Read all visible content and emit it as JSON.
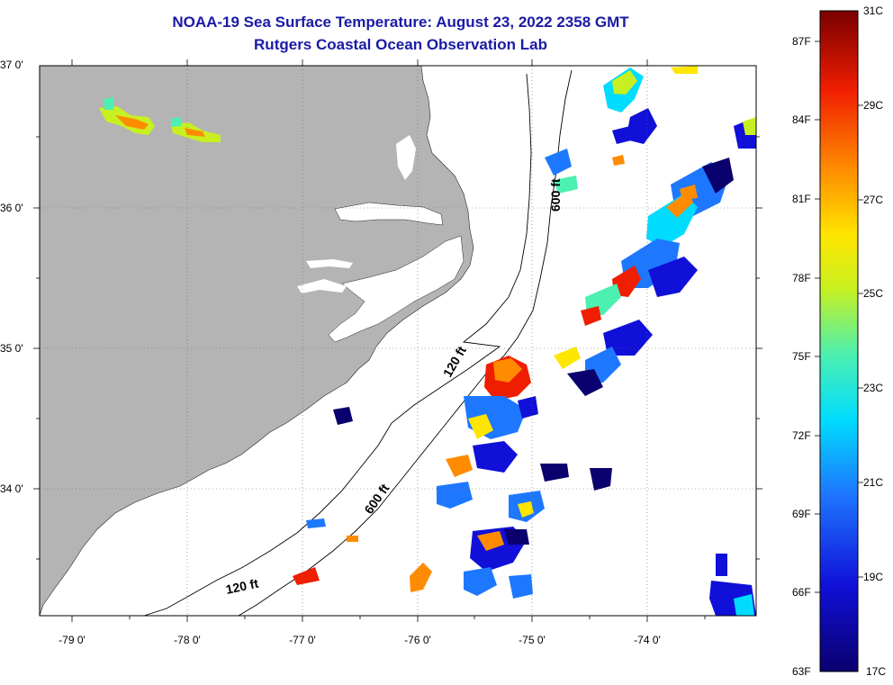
{
  "header": {
    "title": "NOAA-19 Sea Surface Temperature:  August 23, 2022 2358 GMT",
    "subtitle": "Rutgers Coastal Ocean Observation Lab"
  },
  "axes": {
    "lat_labels": [
      "37 0'",
      "36 0'",
      "35 0'",
      "34 0'"
    ],
    "lon_labels": [
      "-79 0'",
      "-78 0'",
      "-77 0'",
      "-76 0'",
      "-75 0'",
      "-74 0'"
    ]
  },
  "contours": {
    "label_120_north": "120 ft",
    "label_120_south": "120 ft",
    "label_600_north": "600 ft",
    "label_600_south": "600 ft"
  },
  "colorbar": {
    "f_labels": [
      "87F",
      "84F",
      "81F",
      "78F",
      "75F",
      "72F",
      "69F",
      "66F",
      "63F"
    ],
    "c_labels": [
      "31C",
      "29C",
      "27C",
      "25C",
      "23C",
      "21C",
      "19C",
      "17C"
    ]
  },
  "colors": {
    "land": "#b4b4b4",
    "title": "#1a1aa6",
    "scale": [
      "#0a006e",
      "#1010d8",
      "#1e78ff",
      "#00dcff",
      "#4cf0b0",
      "#c8f020",
      "#ffe600",
      "#ff8c00",
      "#f01e00",
      "#7a0000"
    ]
  }
}
